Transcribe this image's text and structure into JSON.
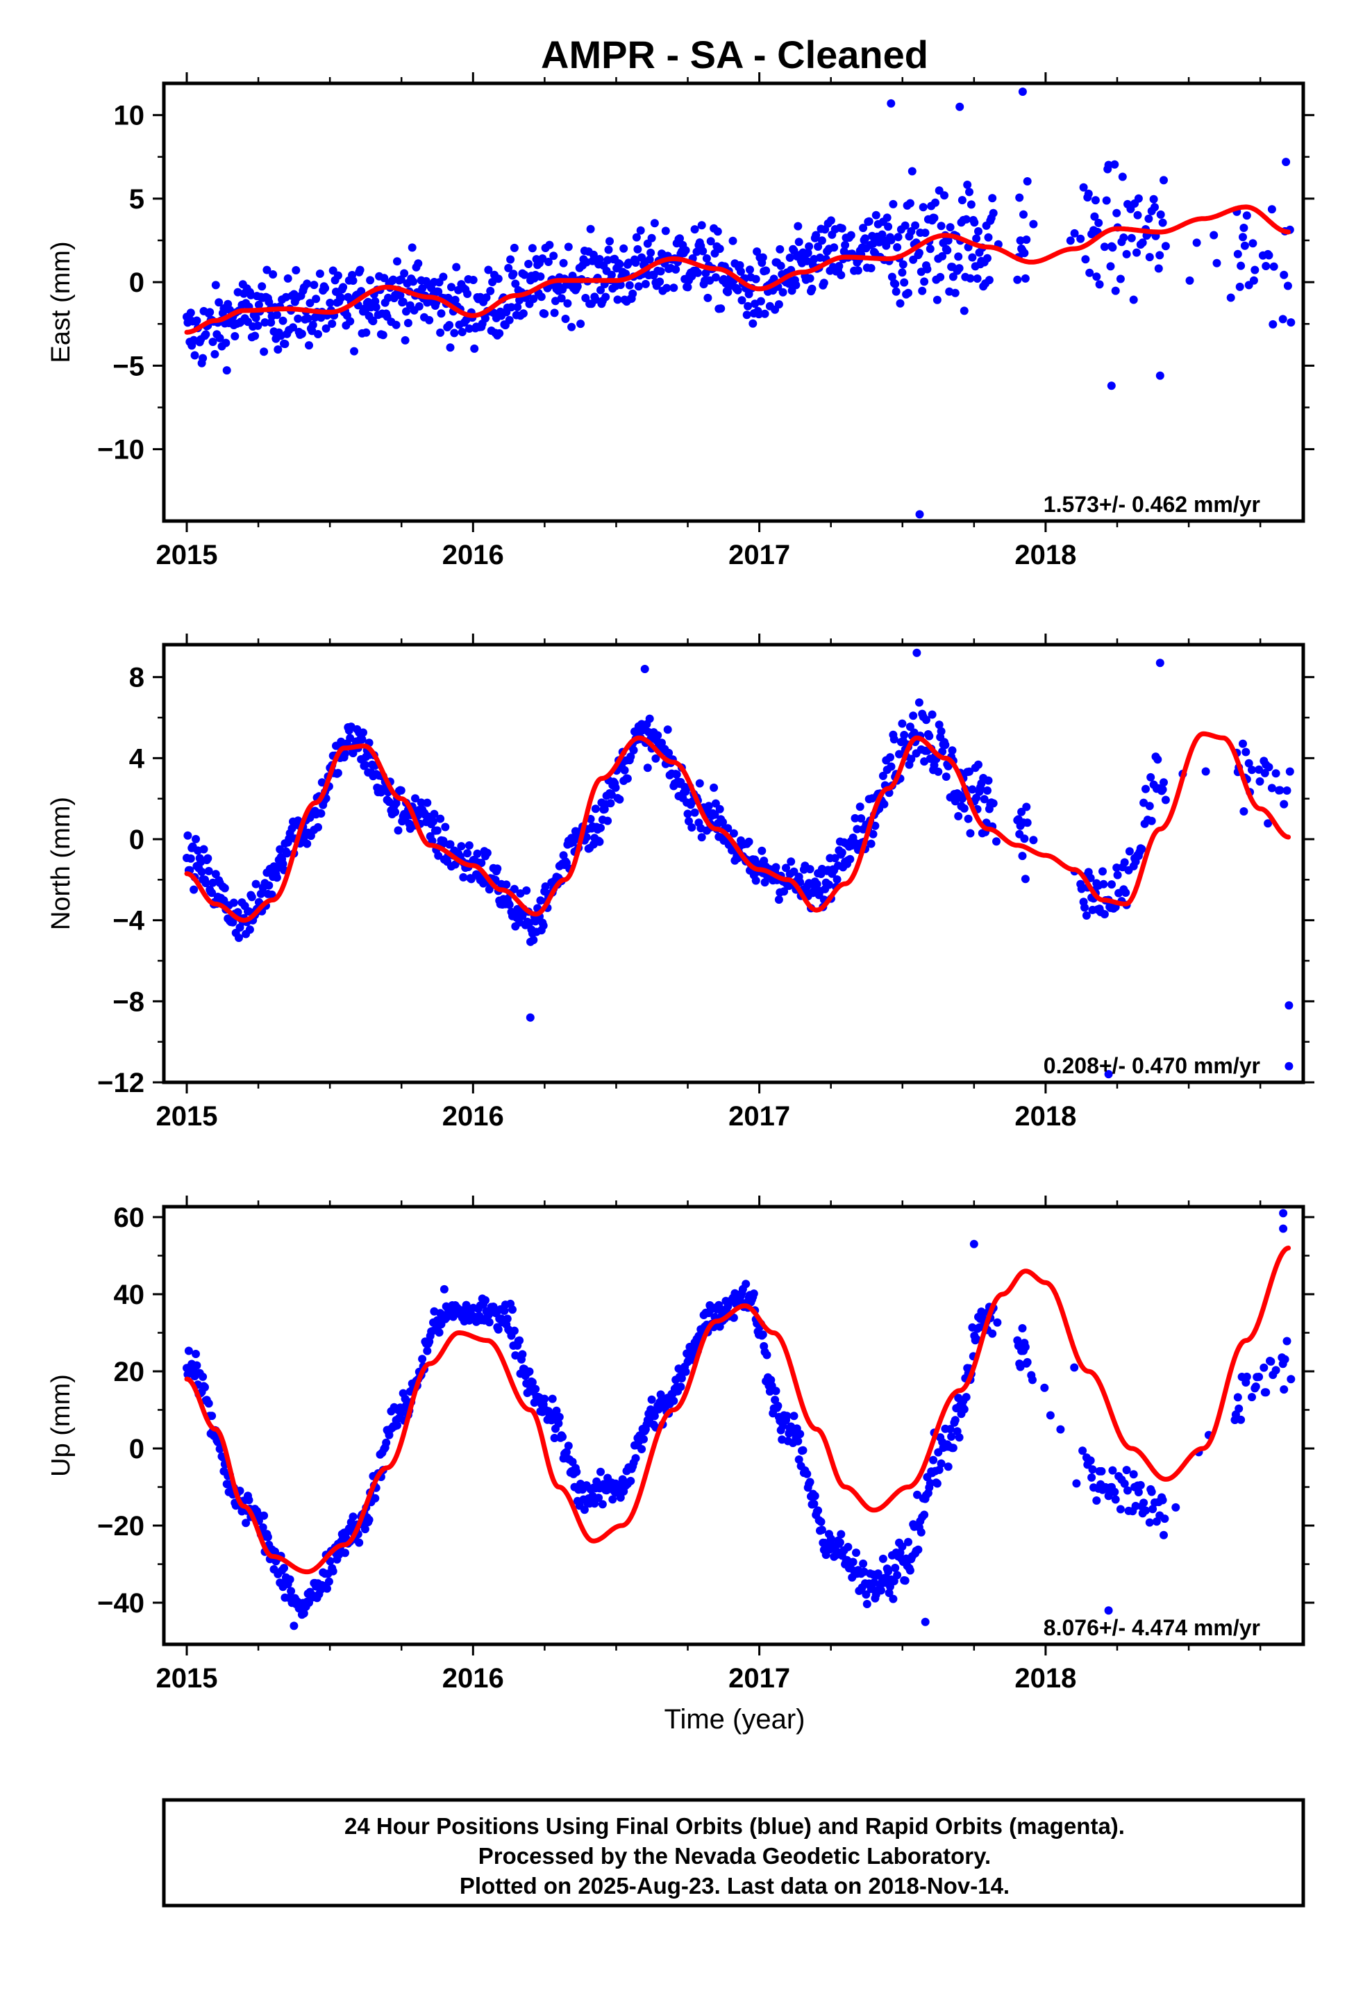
{
  "chart_data": [
    {
      "type": "scatter",
      "title": "AMPR  - SA - Cleaned",
      "ylabel": "East (mm)",
      "xlabel": "",
      "xlim": [
        2014.92,
        2018.9
      ],
      "ylim": [
        -14.3,
        11.9
      ],
      "x_ticks": [
        "2015",
        "2016",
        "2017",
        "2018"
      ],
      "y_ticks": [
        10,
        5,
        0,
        -5,
        -10
      ],
      "y_tick_labels": [
        "10",
        "5",
        "0",
        "−5",
        "−10"
      ],
      "rate_label": "1.573+/- 0.462 mm/yr",
      "grid": false,
      "series": [
        {
          "name": "Final Orbits (blue)",
          "color": "#0000ff",
          "kind": "points",
          "amp": 2.0,
          "fc": 8.3,
          "trend": 1.573,
          "points": [
            [
              2015.0,
              -3.2
            ],
            [
              2015.25,
              -1.8
            ],
            [
              2015.5,
              -1.6
            ],
            [
              2015.75,
              -0.6
            ],
            [
              2016.0,
              -1.6
            ],
            [
              2016.25,
              -0.1
            ],
            [
              2016.5,
              0.5
            ],
            [
              2016.75,
              1.4
            ],
            [
              2017.0,
              -0.5
            ],
            [
              2017.25,
              1.5
            ],
            [
              2017.5,
              2.2
            ],
            [
              2017.75,
              2.4
            ],
            [
              2018.2,
              3.0
            ],
            [
              2018.75,
              2.0
            ]
          ],
          "outliers": [
            [
              2017.56,
              -13.9
            ],
            [
              2018.23,
              -6.2
            ],
            [
              2017.92,
              11.4
            ],
            [
              2018.4,
              -5.6
            ],
            [
              2017.46,
              10.7
            ],
            [
              2017.7,
              10.5
            ]
          ]
        },
        {
          "name": "Fitted model",
          "color": "#ff0000",
          "kind": "line",
          "points": [
            [
              2015.0,
              -3.0
            ],
            [
              2015.1,
              -2.3
            ],
            [
              2015.2,
              -1.7
            ],
            [
              2015.35,
              -1.6
            ],
            [
              2015.5,
              -1.8
            ],
            [
              2015.7,
              -0.3
            ],
            [
              2015.85,
              -0.9
            ],
            [
              2016.0,
              -2.0
            ],
            [
              2016.15,
              -0.8
            ],
            [
              2016.3,
              0.1
            ],
            [
              2016.5,
              0.1
            ],
            [
              2016.7,
              1.4
            ],
            [
              2016.85,
              0.8
            ],
            [
              2017.0,
              -0.4
            ],
            [
              2017.15,
              0.6
            ],
            [
              2017.3,
              1.5
            ],
            [
              2017.45,
              1.4
            ],
            [
              2017.65,
              2.8
            ],
            [
              2017.8,
              2.1
            ],
            [
              2017.95,
              1.2
            ],
            [
              2018.1,
              2.0
            ],
            [
              2018.25,
              3.2
            ],
            [
              2018.4,
              3.0
            ],
            [
              2018.55,
              3.8
            ],
            [
              2018.7,
              4.5
            ],
            [
              2018.85,
              3.0
            ]
          ]
        }
      ]
    },
    {
      "type": "scatter",
      "title": "",
      "ylabel": "North (mm)",
      "xlabel": "",
      "xlim": [
        2014.92,
        2018.9
      ],
      "ylim": [
        -12.0,
        9.6
      ],
      "x_ticks": [
        "2015",
        "2016",
        "2017",
        "2018"
      ],
      "y_ticks": [
        8,
        4,
        0,
        -4,
        -8,
        -12
      ],
      "y_tick_labels": [
        "8",
        "4",
        "0",
        "−4",
        "−8",
        "−12"
      ],
      "rate_label": "0.208+/- 0.470 mm/yr",
      "grid": false,
      "series": [
        {
          "name": "Final Orbits (blue)",
          "color": "#0000ff",
          "kind": "points",
          "amp": 1.0,
          "fc": 8.3,
          "trend": 0.208,
          "points": [
            [
              2015.0,
              -1.0
            ],
            [
              2015.2,
              -3.9
            ],
            [
              2015.4,
              0.5
            ],
            [
              2015.58,
              4.8
            ],
            [
              2015.75,
              1.5
            ],
            [
              2016.0,
              -1.2
            ],
            [
              2016.2,
              -4.0
            ],
            [
              2016.4,
              0.5
            ],
            [
              2016.6,
              5.0
            ],
            [
              2016.8,
              1.5
            ],
            [
              2017.0,
              -1.5
            ],
            [
              2017.2,
              -2.5
            ],
            [
              2017.35,
              0.5
            ],
            [
              2017.55,
              5.5
            ],
            [
              2017.75,
              2.0
            ],
            [
              2018.25,
              -3.0
            ],
            [
              2018.4,
              2.5
            ],
            [
              2018.75,
              3.0
            ]
          ],
          "outliers": [
            [
              2016.2,
              -8.8
            ],
            [
              2018.22,
              -11.6
            ],
            [
              2018.85,
              -11.2
            ],
            [
              2018.85,
              -8.2
            ],
            [
              2017.55,
              9.2
            ],
            [
              2018.4,
              8.7
            ],
            [
              2016.6,
              8.4
            ]
          ]
        },
        {
          "name": "Fitted model",
          "color": "#ff0000",
          "kind": "line",
          "points": [
            [
              2015.0,
              -1.7
            ],
            [
              2015.1,
              -3.2
            ],
            [
              2015.2,
              -4.0
            ],
            [
              2015.3,
              -3.0
            ],
            [
              2015.45,
              1.8
            ],
            [
              2015.55,
              4.5
            ],
            [
              2015.62,
              4.6
            ],
            [
              2015.75,
              2.0
            ],
            [
              2015.85,
              -0.3
            ],
            [
              2016.0,
              -1.3
            ],
            [
              2016.1,
              -2.5
            ],
            [
              2016.22,
              -3.7
            ],
            [
              2016.32,
              -2.0
            ],
            [
              2016.45,
              3.0
            ],
            [
              2016.58,
              5.0
            ],
            [
              2016.7,
              3.8
            ],
            [
              2016.85,
              0.5
            ],
            [
              2017.0,
              -1.5
            ],
            [
              2017.1,
              -2.0
            ],
            [
              2017.2,
              -3.5
            ],
            [
              2017.3,
              -2.2
            ],
            [
              2017.45,
              2.5
            ],
            [
              2017.55,
              5.0
            ],
            [
              2017.65,
              4.0
            ],
            [
              2017.8,
              0.5
            ],
            [
              2017.9,
              -0.3
            ],
            [
              2018.0,
              -0.8
            ],
            [
              2018.1,
              -1.5
            ],
            [
              2018.2,
              -3.0
            ],
            [
              2018.28,
              -3.2
            ],
            [
              2018.4,
              0.5
            ],
            [
              2018.55,
              5.2
            ],
            [
              2018.62,
              5.0
            ],
            [
              2018.75,
              1.5
            ],
            [
              2018.85,
              0.1
            ]
          ]
        }
      ]
    },
    {
      "type": "scatter",
      "title": "",
      "ylabel": "Up (mm)",
      "xlabel": "Time (year)",
      "xlim": [
        2014.92,
        2018.9
      ],
      "ylim": [
        -50.8,
        62.7
      ],
      "x_ticks": [
        "2015",
        "2016",
        "2017",
        "2018"
      ],
      "y_ticks": [
        60,
        40,
        20,
        0,
        -20,
        -40
      ],
      "y_tick_labels": [
        "60",
        "40",
        "20",
        "0",
        "−20",
        "−40"
      ],
      "rate_label": "8.076+/- 4.474 mm/yr",
      "grid": false,
      "series": [
        {
          "name": "Final Orbits (blue)",
          "color": "#0000ff",
          "kind": "points",
          "amp": 4.0,
          "fc": 8.3,
          "trend": 8.076,
          "points": [
            [
              2015.0,
              22
            ],
            [
              2015.2,
              -15
            ],
            [
              2015.4,
              -40
            ],
            [
              2015.6,
              -20
            ],
            [
              2015.75,
              10
            ],
            [
              2015.9,
              35
            ],
            [
              2016.1,
              35
            ],
            [
              2016.25,
              10
            ],
            [
              2016.4,
              -12
            ],
            [
              2016.5,
              -10
            ],
            [
              2016.65,
              10
            ],
            [
              2016.85,
              35
            ],
            [
              2016.95,
              40
            ],
            [
              2017.1,
              5
            ],
            [
              2017.25,
              -25
            ],
            [
              2017.38,
              -35
            ],
            [
              2017.5,
              -30
            ],
            [
              2017.65,
              0
            ],
            [
              2017.8,
              35
            ],
            [
              2018.2,
              -8
            ],
            [
              2018.4,
              -15
            ],
            [
              2018.8,
              20
            ]
          ],
          "outliers": [
            [
              2017.58,
              -45
            ],
            [
              2018.22,
              -42
            ],
            [
              2018.83,
              61
            ],
            [
              2018.83,
              57
            ],
            [
              2017.75,
              53
            ],
            [
              2017.95,
              19
            ],
            [
              2018.1,
              21
            ]
          ]
        },
        {
          "name": "Fitted model",
          "color": "#ff0000",
          "kind": "line",
          "points": [
            [
              2015.0,
              18
            ],
            [
              2015.1,
              5
            ],
            [
              2015.2,
              -15
            ],
            [
              2015.3,
              -28
            ],
            [
              2015.42,
              -32
            ],
            [
              2015.55,
              -25
            ],
            [
              2015.7,
              -5
            ],
            [
              2015.85,
              22
            ],
            [
              2015.95,
              30
            ],
            [
              2016.05,
              28
            ],
            [
              2016.2,
              10
            ],
            [
              2016.3,
              -10
            ],
            [
              2016.42,
              -24
            ],
            [
              2016.52,
              -20
            ],
            [
              2016.7,
              10
            ],
            [
              2016.85,
              33
            ],
            [
              2016.95,
              37
            ],
            [
              2017.05,
              30
            ],
            [
              2017.2,
              5
            ],
            [
              2017.3,
              -10
            ],
            [
              2017.4,
              -16
            ],
            [
              2017.52,
              -10
            ],
            [
              2017.7,
              15
            ],
            [
              2017.85,
              40
            ],
            [
              2017.93,
              46
            ],
            [
              2018.0,
              43
            ],
            [
              2018.15,
              20
            ],
            [
              2018.3,
              0
            ],
            [
              2018.42,
              -8
            ],
            [
              2018.55,
              0
            ],
            [
              2018.7,
              28
            ],
            [
              2018.85,
              52
            ]
          ]
        }
      ]
    }
  ],
  "footer": {
    "lines": [
      "24 Hour Positions Using Final Orbits (blue) and Rapid Orbits (magenta).",
      "Processed by the Nevada Geodetic Laboratory.",
      "Plotted on 2025-Aug-23. Last data on 2018-Nov-14."
    ]
  }
}
